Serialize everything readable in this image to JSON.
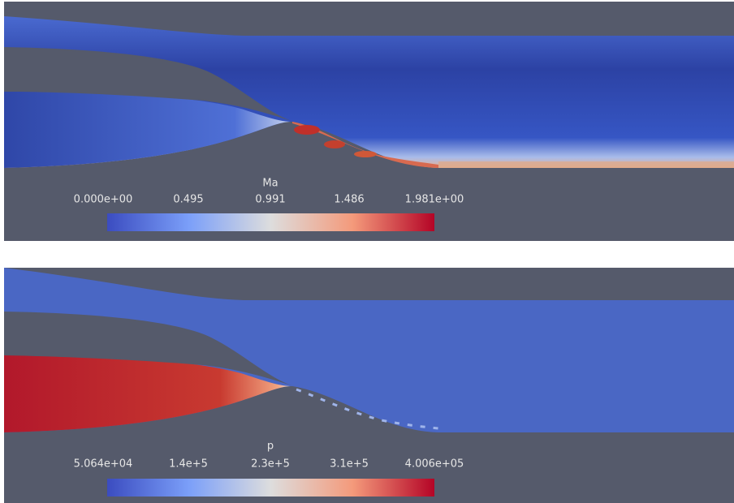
{
  "panels": [
    {
      "colorbar": {
        "title": "Ma",
        "labels": [
          "0.000e+00",
          "0.495",
          "0.991",
          "1.486",
          "1.981e+00"
        ]
      }
    },
    {
      "colorbar": {
        "title": "p",
        "labels": [
          "5.064e+04",
          "1.4e+5",
          "2.3e+5",
          "3.1e+5",
          "4.006e+05"
        ]
      }
    }
  ]
}
